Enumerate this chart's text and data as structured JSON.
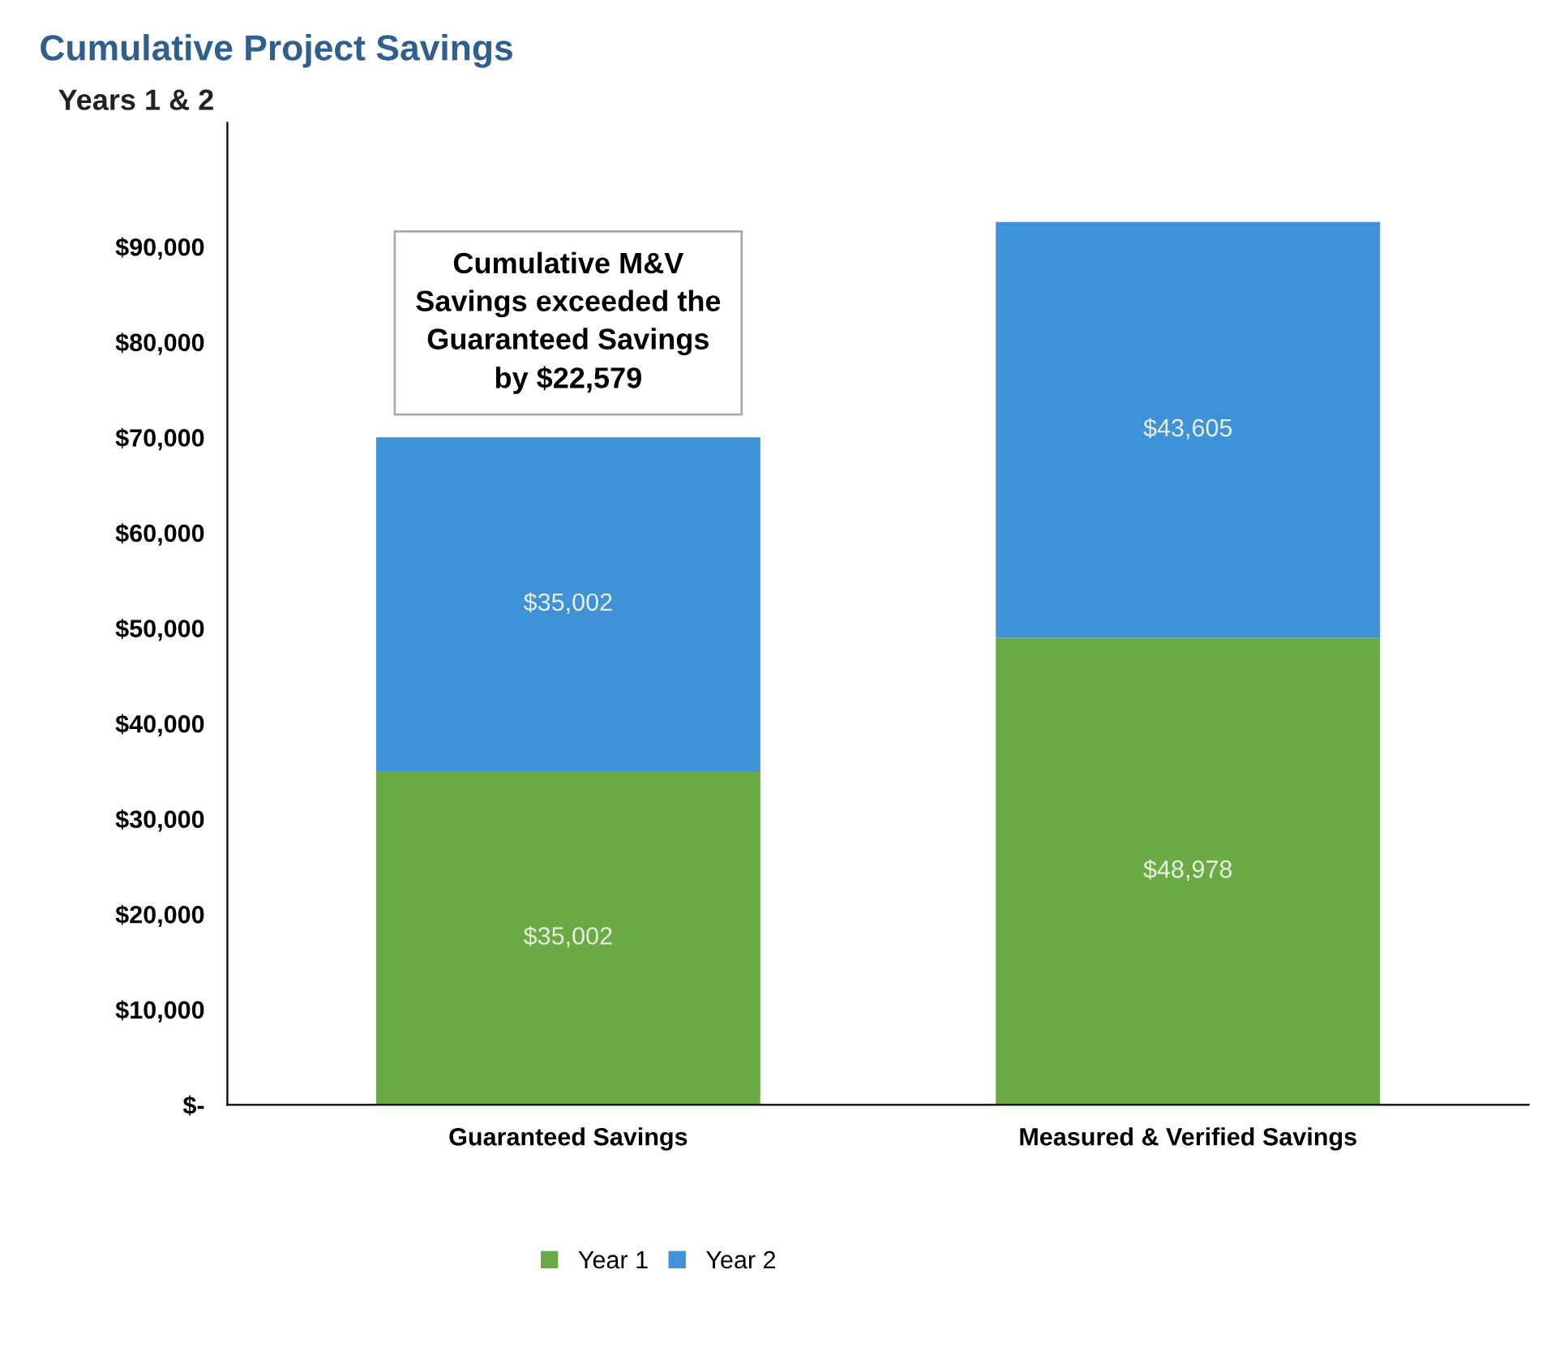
{
  "chart_data": {
    "type": "bar",
    "stacked": true,
    "title": "Cumulative Project Savings",
    "subtitle": "Years 1 & 2",
    "categories": [
      "Guaranteed Savings",
      "Measured & Verified Savings"
    ],
    "series": [
      {
        "name": "Year 1",
        "color": "#6aab45",
        "values": [
          35002,
          48978
        ],
        "value_labels": [
          "$35,002",
          "$48,978"
        ]
      },
      {
        "name": "Year 2",
        "color": "#3f92d8",
        "values": [
          35002,
          43605
        ],
        "value_labels": [
          "$35,002",
          "$43,605"
        ]
      }
    ],
    "ylim": [
      0,
      103000
    ],
    "yticks": [
      {
        "value": 0,
        "label": "$-"
      },
      {
        "value": 10000,
        "label": "$10,000"
      },
      {
        "value": 20000,
        "label": "$20,000"
      },
      {
        "value": 30000,
        "label": "$30,000"
      },
      {
        "value": 40000,
        "label": "$40,000"
      },
      {
        "value": 50000,
        "label": "$50,000"
      },
      {
        "value": 60000,
        "label": "$60,000"
      },
      {
        "value": 70000,
        "label": "$70,000"
      },
      {
        "value": 80000,
        "label": "$80,000"
      },
      {
        "value": 90000,
        "label": "$90,000"
      }
    ],
    "annotations": [
      "Cumulative M&V\nSavings exceeded the\nGuaranteed Savings\nby $22,579"
    ],
    "legend": "bottom",
    "grid": false
  }
}
